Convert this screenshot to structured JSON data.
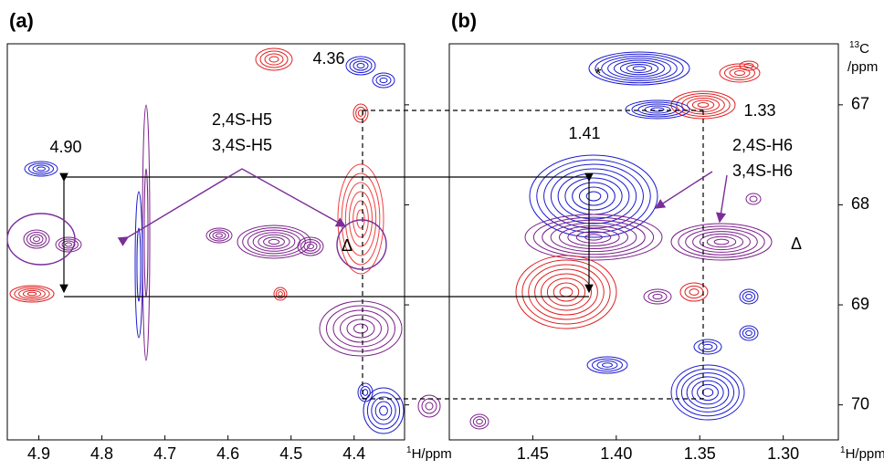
{
  "chart_data": [
    {
      "type": "contour",
      "panel_label": "(a)",
      "xlim": [
        4.95,
        4.32
      ],
      "xticks": [
        4.9,
        4.8,
        4.7,
        4.6,
        4.5,
        4.4
      ],
      "ylim": [
        66.39,
        70.35
      ],
      "yticks": [
        67,
        68,
        69,
        70
      ],
      "xlabel": {
        "superscript": "1",
        "text": "H/ppm"
      },
      "annotations": [
        "4.36",
        "4.90",
        "2,4S-H5",
        "3,4S-H5",
        "Δ"
      ]
    },
    {
      "type": "contour",
      "panel_label": "(b)",
      "xlim": [
        1.5,
        1.267
      ],
      "xticks": [
        1.45,
        {
          "value": 1.4,
          "label": "1.40"
        },
        1.35,
        {
          "value": 1.3,
          "label": "1.30"
        }
      ],
      "ylim": [
        66.39,
        70.35
      ],
      "yticks": [
        67,
        68,
        69,
        70
      ],
      "xlabel": {
        "superscript": "1",
        "text": "H/ppm"
      },
      "ylabel": {
        "superscript": "13",
        "text": "C",
        "unit": "/ppm"
      },
      "annotations": [
        "*",
        "1.33",
        "1.41",
        "2,4S-H6",
        "3,4S-H6",
        "Δ"
      ]
    }
  ]
}
